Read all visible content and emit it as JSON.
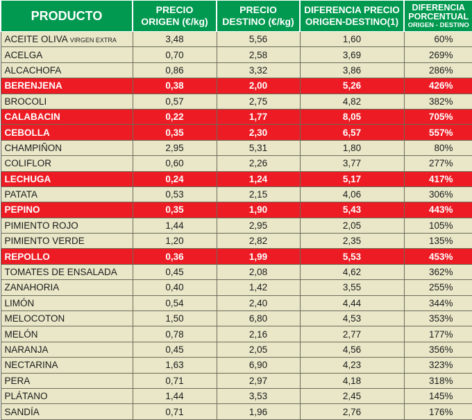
{
  "header": {
    "producto": "PRODUCTO",
    "origen": [
      "PRECIO",
      "ORIGEN (€/kg)"
    ],
    "destino": [
      "PRECIO",
      "DESTINO (€/kg)"
    ],
    "diferencia": [
      "DIFERENCIA PRECIO",
      "ORIGEN-DESTINO(1)"
    ],
    "porcentual": [
      "DIFERENCIA",
      "PORCENTUAL",
      "ORIGEN - DESTINO"
    ]
  },
  "colors": {
    "header": "#00994f",
    "row": "#e9e7c8",
    "highlight": "#ed1c24"
  },
  "rows": [
    {
      "name": "ACEITE OLIVA",
      "sub": "VIRGEN EXTRA",
      "origen": "3,48",
      "destino": "5,56",
      "dif": "1,60",
      "pct": "60%",
      "hl": false
    },
    {
      "name": "ACELGA",
      "origen": "0,70",
      "destino": "2,58",
      "dif": "3,69",
      "pct": "269%",
      "hl": false
    },
    {
      "name": "ALCACHOFA",
      "origen": "0,86",
      "destino": "3,32",
      "dif": "3,86",
      "pct": "286%",
      "hl": false
    },
    {
      "name": "BERENJENA",
      "origen": "0,38",
      "destino": "2,00",
      "dif": "5,26",
      "pct": "426%",
      "hl": true
    },
    {
      "name": "BROCOLI",
      "origen": "0,57",
      "destino": "2,75",
      "dif": "4,82",
      "pct": "382%",
      "hl": false
    },
    {
      "name": "CALABACIN",
      "origen": "0,22",
      "destino": "1,77",
      "dif": "8,05",
      "pct": "705%",
      "hl": true
    },
    {
      "name": "CEBOLLA",
      "origen": "0,35",
      "destino": "2,30",
      "dif": "6,57",
      "pct": "557%",
      "hl": true
    },
    {
      "name": "CHAMPIÑON",
      "origen": "2,95",
      "destino": "5,31",
      "dif": "1,80",
      "pct": "80%",
      "hl": false
    },
    {
      "name": "COLIFLOR",
      "origen": "0,60",
      "destino": "2,26",
      "dif": "3,77",
      "pct": "277%",
      "hl": false
    },
    {
      "name": "LECHUGA",
      "origen": "0,24",
      "destino": "1,24",
      "dif": "5,17",
      "pct": "417%",
      "hl": true
    },
    {
      "name": "PATATA",
      "origen": "0,53",
      "destino": "2,15",
      "dif": "4,06",
      "pct": "306%",
      "hl": false
    },
    {
      "name": "PEPINO",
      "origen": "0,35",
      "destino": "1,90",
      "dif": "5,43",
      "pct": "443%",
      "hl": true
    },
    {
      "name": "PIMIENTO ROJO",
      "origen": "1,44",
      "destino": "2,95",
      "dif": "2,05",
      "pct": "105%",
      "hl": false
    },
    {
      "name": "PIMIENTO VERDE",
      "origen": "1,20",
      "destino": "2,82",
      "dif": "2,35",
      "pct": "135%",
      "hl": false
    },
    {
      "name": "REPOLLO",
      "origen": "0,36",
      "destino": "1,99",
      "dif": "5,53",
      "pct": "453%",
      "hl": true
    },
    {
      "name": "TOMATES DE ENSALADA",
      "origen": "0,45",
      "destino": "2,08",
      "dif": "4,62",
      "pct": "362%",
      "hl": false
    },
    {
      "name": "ZANAHORIA",
      "origen": "0,40",
      "destino": "1,42",
      "dif": "3,55",
      "pct": "255%",
      "hl": false
    },
    {
      "name": "LIMÓN",
      "origen": "0,54",
      "destino": "2,40",
      "dif": "4,44",
      "pct": "344%",
      "hl": false
    },
    {
      "name": "MELOCOTON",
      "origen": "1,50",
      "destino": "6,80",
      "dif": "4,53",
      "pct": "353%",
      "hl": false
    },
    {
      "name": "MELÓN",
      "origen": "0,78",
      "destino": "2,16",
      "dif": "2,77",
      "pct": "177%",
      "hl": false
    },
    {
      "name": "NARANJA",
      "origen": "0,45",
      "destino": "2,05",
      "dif": "4,56",
      "pct": "356%",
      "hl": false
    },
    {
      "name": "NECTARINA",
      "origen": "1,63",
      "destino": "6,90",
      "dif": "4,23",
      "pct": "323%",
      "hl": false
    },
    {
      "name": "PERA",
      "origen": "0,71",
      "destino": "2,97",
      "dif": "4,18",
      "pct": "318%",
      "hl": false
    },
    {
      "name": "PLÁTANO",
      "origen": "1,44",
      "destino": "3,53",
      "dif": "2,45",
      "pct": "145%",
      "hl": false
    },
    {
      "name": "SANDÍA",
      "origen": "0,71",
      "destino": "1,96",
      "dif": "2,76",
      "pct": "176%",
      "hl": false
    }
  ]
}
